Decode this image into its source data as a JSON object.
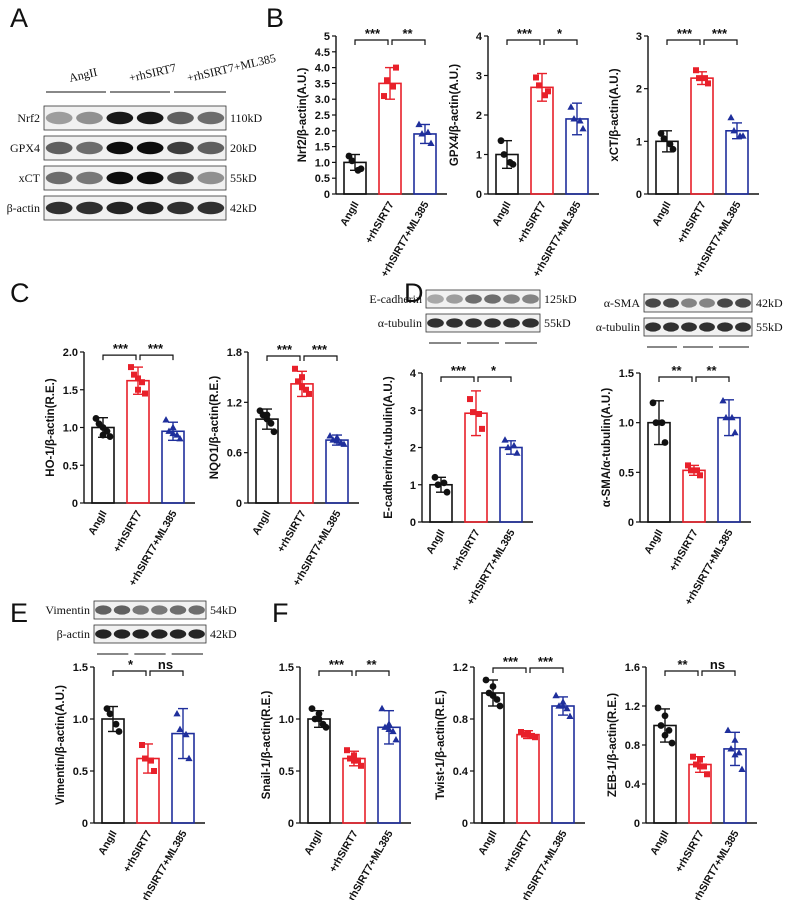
{
  "panel_labels": {
    "A": "A",
    "B": "B",
    "C": "C",
    "D": "D",
    "E": "E",
    "F": "F"
  },
  "groups": [
    "AngII",
    "+rhSIRT7",
    "+rhSIRT7+ML385"
  ],
  "colors": {
    "AngII": "#111111",
    "+rhSIRT7": "#e8202a",
    "+rhSIRT7+ML385": "#1f2f9c"
  },
  "blots": {
    "A": {
      "header": [
        "AngII",
        "+rhSIRT7",
        "+rhSIRT7+ML385"
      ],
      "rows": [
        {
          "protein": "Nrf2",
          "size": "110kD"
        },
        {
          "protein": "GPX4",
          "size": "20kD"
        },
        {
          "protein": "xCT",
          "size": "55kD"
        },
        {
          "protein": "β-actin",
          "size": "42kD"
        }
      ]
    },
    "D1": {
      "rows": [
        {
          "protein": "E-cadherin",
          "size": "125kD"
        },
        {
          "protein": "α-tubulin",
          "size": "55kD"
        }
      ]
    },
    "D2": {
      "rows": [
        {
          "protein": "α-SMA",
          "size": "42kD"
        },
        {
          "protein": "α-tubulin",
          "size": "55kD"
        }
      ]
    },
    "E": {
      "rows": [
        {
          "protein": "Vimentin",
          "size": "54kD"
        },
        {
          "protein": "β-actin",
          "size": "42kD"
        }
      ]
    }
  },
  "chart_data": [
    {
      "id": "B1",
      "type": "bar",
      "panel": "B",
      "ylabel": "Nrf2/β-actin(A.U.)",
      "ylim": [
        0,
        5
      ],
      "yticks": [
        "0",
        "0.5",
        "1.0",
        "1.5",
        "2.0",
        "2.5",
        "3.0",
        "3.5",
        "4.0",
        "4.5",
        "5"
      ],
      "categories": [
        "AngII",
        "+rhSIRT7",
        "+rhSIRT7+ML385"
      ],
      "values": [
        1.0,
        3.5,
        1.9
      ],
      "errors": [
        0.25,
        0.5,
        0.3
      ],
      "points": [
        [
          1.2,
          0.8,
          1.05,
          0.75
        ],
        [
          3.1,
          4.0,
          3.6,
          3.4
        ],
        [
          2.2,
          1.6,
          1.9,
          1.95
        ]
      ],
      "significance": [
        {
          "from": 0,
          "to": 1,
          "label": "***"
        },
        {
          "from": 1,
          "to": 2,
          "label": "**"
        }
      ]
    },
    {
      "id": "B2",
      "type": "bar",
      "panel": "B",
      "ylabel": "GPX4/β-actin(A.U.)",
      "ylim": [
        0,
        4
      ],
      "yticks": [
        "0",
        "1",
        "2",
        "3",
        "4"
      ],
      "categories": [
        "AngII",
        "+rhSIRT7",
        "+rhSIRT7+ML385"
      ],
      "values": [
        1.0,
        2.7,
        1.9
      ],
      "errors": [
        0.35,
        0.35,
        0.4
      ],
      "points": [
        [
          1.35,
          0.75,
          1.0,
          0.8
        ],
        [
          2.95,
          2.6,
          2.75,
          2.5
        ],
        [
          2.2,
          1.65,
          1.9,
          1.85
        ]
      ],
      "significance": [
        {
          "from": 0,
          "to": 1,
          "label": "***"
        },
        {
          "from": 1,
          "to": 2,
          "label": "*"
        }
      ]
    },
    {
      "id": "B3",
      "type": "bar",
      "panel": "B",
      "ylabel": "xCT/β-actin(A.U.)",
      "ylim": [
        0,
        3
      ],
      "yticks": [
        "0",
        "1",
        "2",
        "3"
      ],
      "categories": [
        "AngII",
        "+rhSIRT7",
        "+rhSIRT7+ML385"
      ],
      "values": [
        1.0,
        2.2,
        1.2
      ],
      "errors": [
        0.2,
        0.12,
        0.15
      ],
      "points": [
        [
          1.15,
          0.85,
          1.05,
          0.95
        ],
        [
          2.35,
          2.1,
          2.2,
          2.2
        ],
        [
          1.45,
          1.1,
          1.2,
          1.1
        ]
      ],
      "significance": [
        {
          "from": 0,
          "to": 1,
          "label": "***"
        },
        {
          "from": 1,
          "to": 2,
          "label": "***"
        }
      ]
    },
    {
      "id": "C1",
      "type": "bar",
      "panel": "C",
      "ylabel": "HO-1/β-actin(R.E.)",
      "ylim": [
        0,
        2.0
      ],
      "yticks": [
        "0",
        "0.5",
        "1.0",
        "1.5",
        "2.0"
      ],
      "categories": [
        "AngII",
        "+rhSIRT7",
        "+rhSIRT7+ML385"
      ],
      "values": [
        1.0,
        1.62,
        0.95
      ],
      "errors": [
        0.13,
        0.18,
        0.12
      ],
      "points": [
        [
          1.12,
          0.88,
          1.05,
          0.95,
          1.0,
          0.9
        ],
        [
          1.8,
          1.45,
          1.7,
          1.6,
          1.5,
          1.65
        ],
        [
          1.1,
          0.85,
          0.95,
          0.9,
          1.0,
          0.92
        ]
      ],
      "significance": [
        {
          "from": 0,
          "to": 1,
          "label": "***"
        },
        {
          "from": 1,
          "to": 2,
          "label": "***"
        }
      ]
    },
    {
      "id": "C2",
      "type": "bar",
      "panel": "C",
      "ylabel": "NQO1/β-actin(R.E.)",
      "ylim": [
        0,
        1.8
      ],
      "yticks": [
        "0",
        "0.6",
        "1.2",
        "1.8"
      ],
      "categories": [
        "AngII",
        "+rhSIRT7",
        "+rhSIRT7+ML385"
      ],
      "values": [
        1.0,
        1.42,
        0.75
      ],
      "errors": [
        0.12,
        0.15,
        0.06
      ],
      "points": [
        [
          1.1,
          0.85,
          1.05,
          0.95,
          1.0,
          1.05
        ],
        [
          1.6,
          1.3,
          1.45,
          1.35,
          1.5,
          1.38
        ],
        [
          0.8,
          0.7,
          0.75,
          0.72,
          0.78,
          0.74
        ]
      ],
      "significance": [
        {
          "from": 0,
          "to": 1,
          "label": "***"
        },
        {
          "from": 1,
          "to": 2,
          "label": "***"
        }
      ]
    },
    {
      "id": "D1",
      "type": "bar",
      "panel": "D",
      "ylabel": "E-cadherin/α-tubulin(A.U.)",
      "ylim": [
        0,
        4
      ],
      "yticks": [
        "0",
        "1",
        "2",
        "3",
        "4"
      ],
      "categories": [
        "AngII",
        "+rhSIRT7",
        "+rhSIRT7+ML385"
      ],
      "values": [
        1.0,
        2.92,
        2.0
      ],
      "errors": [
        0.2,
        0.6,
        0.18
      ],
      "points": [
        [
          1.2,
          0.8,
          1.0,
          1.05
        ],
        [
          3.3,
          2.5,
          2.95,
          2.9
        ],
        [
          2.2,
          1.85,
          2.0,
          2.05
        ]
      ],
      "significance": [
        {
          "from": 0,
          "to": 1,
          "label": "***"
        },
        {
          "from": 1,
          "to": 2,
          "label": "*"
        }
      ]
    },
    {
      "id": "D2",
      "type": "bar",
      "panel": "D",
      "ylabel": "α-SMA/α-tubulin(A.U.)",
      "ylim": [
        0,
        1.5
      ],
      "yticks": [
        "0",
        "0.5",
        "1.0",
        "1.5"
      ],
      "categories": [
        "AngII",
        "+rhSIRT7",
        "+rhSIRT7+ML385"
      ],
      "values": [
        1.0,
        0.52,
        1.05
      ],
      "errors": [
        0.22,
        0.05,
        0.18
      ],
      "points": [
        [
          1.2,
          0.8,
          1.0,
          1.0
        ],
        [
          0.57,
          0.47,
          0.52,
          0.52
        ],
        [
          1.22,
          0.9,
          1.05,
          1.05
        ]
      ],
      "significance": [
        {
          "from": 0,
          "to": 1,
          "label": "**"
        },
        {
          "from": 1,
          "to": 2,
          "label": "**"
        }
      ]
    },
    {
      "id": "E1",
      "type": "bar",
      "panel": "E",
      "ylabel": "Vimentin/β-actin(A.U.)",
      "ylim": [
        0,
        1.5
      ],
      "yticks": [
        "0",
        "0.5",
        "1.0",
        "1.5"
      ],
      "categories": [
        "AngII",
        "+rhSIRT7",
        "+rhSIRT7+ML385"
      ],
      "values": [
        1.0,
        0.62,
        0.86
      ],
      "errors": [
        0.12,
        0.14,
        0.24
      ],
      "points": [
        [
          1.1,
          0.88,
          1.05,
          0.95
        ],
        [
          0.75,
          0.5,
          0.62,
          0.6
        ],
        [
          1.05,
          0.62,
          0.9,
          0.85
        ]
      ],
      "significance": [
        {
          "from": 0,
          "to": 1,
          "label": "*"
        },
        {
          "from": 1,
          "to": 2,
          "label": "ns"
        }
      ]
    },
    {
      "id": "F1",
      "type": "bar",
      "panel": "F",
      "ylabel": "Snail-1/β-actin(R.E.)",
      "ylim": [
        0,
        1.5
      ],
      "yticks": [
        "0",
        "0.5",
        "1.0",
        "1.5"
      ],
      "categories": [
        "AngII",
        "+rhSIRT7",
        "+rhSIRT7+ML385"
      ],
      "values": [
        1.0,
        0.62,
        0.92
      ],
      "errors": [
        0.08,
        0.07,
        0.16
      ],
      "points": [
        [
          1.1,
          0.92,
          1.0,
          0.95,
          1.05,
          1.0
        ],
        [
          0.7,
          0.55,
          0.62,
          0.6,
          0.65,
          0.6
        ],
        [
          1.1,
          0.8,
          0.92,
          0.88,
          0.95,
          0.9
        ]
      ],
      "significance": [
        {
          "from": 0,
          "to": 1,
          "label": "***"
        },
        {
          "from": 1,
          "to": 2,
          "label": "**"
        }
      ]
    },
    {
      "id": "F2",
      "type": "bar",
      "panel": "F",
      "ylabel": "Twist-1/β-actin(R.E.)",
      "ylim": [
        0,
        1.2
      ],
      "yticks": [
        "0",
        "0.4",
        "0.8",
        "1.2"
      ],
      "categories": [
        "AngII",
        "+rhSIRT7",
        "+rhSIRT7+ML385"
      ],
      "values": [
        1.0,
        0.68,
        0.9
      ],
      "errors": [
        0.1,
        0.03,
        0.07
      ],
      "points": [
        [
          1.1,
          0.9,
          1.0,
          0.95,
          1.05,
          0.98
        ],
        [
          0.7,
          0.66,
          0.68,
          0.67,
          0.69,
          0.68
        ],
        [
          0.98,
          0.82,
          0.9,
          0.88,
          0.93,
          0.9
        ]
      ],
      "significance": [
        {
          "from": 0,
          "to": 1,
          "label": "***"
        },
        {
          "from": 1,
          "to": 2,
          "label": "***"
        }
      ]
    },
    {
      "id": "F3",
      "type": "bar",
      "panel": "F",
      "ylabel": "ZEB-1/β-actin(R.E.)",
      "ylim": [
        0,
        1.6
      ],
      "yticks": [
        "0",
        "0.4",
        "0.8",
        "1.2",
        "1.6"
      ],
      "categories": [
        "AngII",
        "+rhSIRT7",
        "+rhSIRT7+ML385"
      ],
      "values": [
        1.0,
        0.6,
        0.76
      ],
      "errors": [
        0.17,
        0.08,
        0.17
      ],
      "points": [
        [
          1.18,
          0.82,
          1.0,
          0.95,
          1.1,
          0.9
        ],
        [
          0.68,
          0.5,
          0.6,
          0.58,
          0.65,
          0.58
        ],
        [
          0.95,
          0.55,
          0.76,
          0.72,
          0.85,
          0.7
        ]
      ],
      "significance": [
        {
          "from": 0,
          "to": 1,
          "label": "**"
        },
        {
          "from": 1,
          "to": 2,
          "label": "ns"
        }
      ]
    }
  ]
}
